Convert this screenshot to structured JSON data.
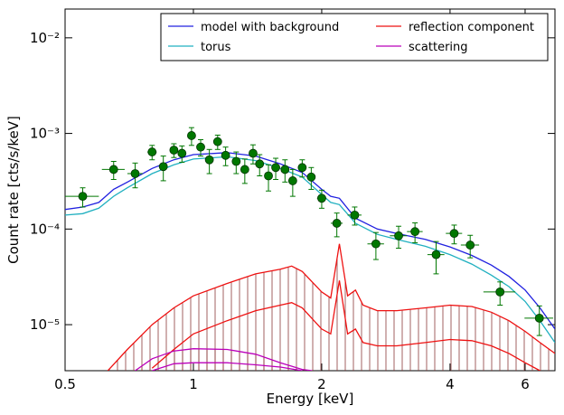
{
  "chart_data": {
    "type": "line",
    "xlabel": "Energy [keV]",
    "ylabel": "Count rate [cts/s/keV]",
    "xlog": true,
    "ylog": true,
    "xlim": [
      0.5,
      7.05
    ],
    "ylim": [
      3.3e-06,
      0.02
    ],
    "xticks": [
      0.5,
      1,
      2,
      4,
      6
    ],
    "yticks": [
      {
        "value": 1e-05,
        "label": "10⁻⁵"
      },
      {
        "value": 0.0001,
        "label": "10⁻⁴"
      },
      {
        "value": 0.001,
        "label": "10⁻³"
      },
      {
        "value": 0.01,
        "label": "10⁻²"
      }
    ],
    "legend": "upper right",
    "hatch_color": "#8b3a3a",
    "series": [
      {
        "name": "model with background",
        "color": "#2020e0",
        "x": [
          0.5,
          0.55,
          0.6,
          0.65,
          0.7,
          0.8,
          0.9,
          1.0,
          1.2,
          1.4,
          1.6,
          1.8,
          2.0,
          2.1,
          2.2,
          2.4,
          2.7,
          3.0,
          3.5,
          4.0,
          4.5,
          5.0,
          5.5,
          6.0,
          6.5,
          7.05
        ],
        "values": [
          0.00016,
          0.00017,
          0.00019,
          0.00026,
          0.00031,
          0.00043,
          0.00053,
          0.0006,
          0.00063,
          0.00058,
          0.00048,
          0.00039,
          0.00026,
          0.00022,
          0.00021,
          0.00013,
          0.0001,
          9e-05,
          7.8e-05,
          6.5e-05,
          5.3e-05,
          4.2e-05,
          3.2e-05,
          2.3e-05,
          1.5e-05,
          9e-06
        ]
      },
      {
        "name": "reflection component",
        "color": "#ee1111",
        "x": [
          0.63,
          0.7,
          0.8,
          0.9,
          1.0,
          1.2,
          1.4,
          1.6,
          1.7,
          1.8,
          2.0,
          2.1,
          2.2,
          2.3,
          2.4,
          2.5,
          2.7,
          3.0,
          3.5,
          4.0,
          4.5,
          5.0,
          5.5,
          6.0,
          6.5,
          7.05
        ],
        "values": [
          3.3e-06,
          5.5e-06,
          1e-05,
          1.5e-05,
          2e-05,
          2.7e-05,
          3.4e-05,
          3.8e-05,
          4.1e-05,
          3.6e-05,
          2.2e-05,
          1.9e-05,
          7e-05,
          2e-05,
          2.3e-05,
          1.6e-05,
          1.4e-05,
          1.4e-05,
          1.5e-05,
          1.6e-05,
          1.55e-05,
          1.35e-05,
          1.1e-05,
          8.5e-06,
          6.5e-06,
          5e-06
        ],
        "values_low": [
          null,
          null,
          3.5e-06,
          5.5e-06,
          8e-06,
          1.1e-05,
          1.4e-05,
          1.6e-05,
          1.7e-05,
          1.5e-05,
          9e-06,
          8e-06,
          2.9e-05,
          8e-06,
          9e-06,
          6.5e-06,
          6e-06,
          6e-06,
          6.5e-06,
          7e-06,
          6.8e-06,
          6e-06,
          5e-06,
          4e-06,
          3.3e-06,
          null
        ]
      },
      {
        "name": "torus",
        "color": "#20b0c0",
        "x": [
          0.5,
          0.55,
          0.6,
          0.65,
          0.7,
          0.8,
          0.9,
          1.0,
          1.2,
          1.4,
          1.6,
          1.8,
          2.0,
          2.1,
          2.2,
          2.4,
          2.7,
          3.0,
          3.5,
          4.0,
          4.5,
          5.0,
          5.5,
          6.0,
          6.5,
          7.05
        ],
        "values": [
          0.00014,
          0.000145,
          0.000165,
          0.00022,
          0.00027,
          0.00038,
          0.00047,
          0.00054,
          0.00057,
          0.00052,
          0.00043,
          0.00035,
          0.00023,
          0.00019,
          0.00018,
          0.000115,
          8.8e-05,
          7.8e-05,
          6.6e-05,
          5.4e-05,
          4.3e-05,
          3.3e-05,
          2.5e-05,
          1.75e-05,
          1.1e-05,
          6.5e-06
        ]
      },
      {
        "name": "scattering",
        "color": "#bb00bb",
        "x": [
          0.73,
          0.8,
          0.9,
          1.0,
          1.2,
          1.4,
          1.6,
          1.8,
          1.9
        ],
        "values": [
          3.3e-06,
          4.4e-06,
          5.3e-06,
          5.6e-06,
          5.5e-06,
          4.9e-06,
          4e-06,
          3.4e-06,
          3.3e-06
        ],
        "values_low": [
          null,
          3.3e-06,
          3.9e-06,
          4e-06,
          4e-06,
          3.8e-06,
          3.6e-06,
          3.3e-06,
          null
        ]
      }
    ],
    "points": {
      "color": "#007700",
      "x": [
        0.55,
        0.65,
        0.73,
        0.8,
        0.85,
        0.9,
        0.94,
        0.99,
        1.04,
        1.09,
        1.14,
        1.19,
        1.26,
        1.32,
        1.38,
        1.43,
        1.5,
        1.56,
        1.64,
        1.71,
        1.8,
        1.89,
        2.0,
        2.17,
        2.39,
        2.68,
        3.03,
        3.31,
        3.71,
        4.09,
        4.46,
        5.24,
        6.48
      ],
      "values": [
        0.00022,
        0.00042,
        0.00038,
        0.00064,
        0.00045,
        0.00067,
        0.00062,
        0.00095,
        0.00072,
        0.00053,
        0.00082,
        0.00059,
        0.00051,
        0.00042,
        0.00062,
        0.00048,
        0.00036,
        0.00044,
        0.00042,
        0.00032,
        0.00044,
        0.00035,
        0.00021,
        0.000115,
        0.00014,
        7e-05,
        8.5e-05,
        9.4e-05,
        5.4e-05,
        9e-05,
        6.8e-05,
        2.2e-05,
        1.17e-05
      ],
      "xerr": [
        0.05,
        0.04,
        0.03,
        0.02,
        0.02,
        0.02,
        0.02,
        0.02,
        0.02,
        0.02,
        0.02,
        0.02,
        0.025,
        0.025,
        0.025,
        0.025,
        0.03,
        0.03,
        0.03,
        0.03,
        0.04,
        0.04,
        0.05,
        0.07,
        0.09,
        0.12,
        0.14,
        0.14,
        0.17,
        0.18,
        0.22,
        0.45,
        0.5
      ],
      "yerr": [
        5e-05,
        9e-05,
        0.00011,
        0.00011,
        0.00013,
        0.00011,
        0.00012,
        0.0002,
        0.00014,
        0.00015,
        0.00014,
        0.00013,
        0.00013,
        0.00012,
        0.00014,
        0.00012,
        0.00011,
        0.00011,
        0.00011,
        0.0001,
        9e-05,
        9e-05,
        4.5e-05,
        3.2e-05,
        3e-05,
        2.2e-05,
        2.2e-05,
        2.2e-05,
        2e-05,
        2e-05,
        1.8e-05,
        6e-06,
        4e-06
      ]
    }
  }
}
